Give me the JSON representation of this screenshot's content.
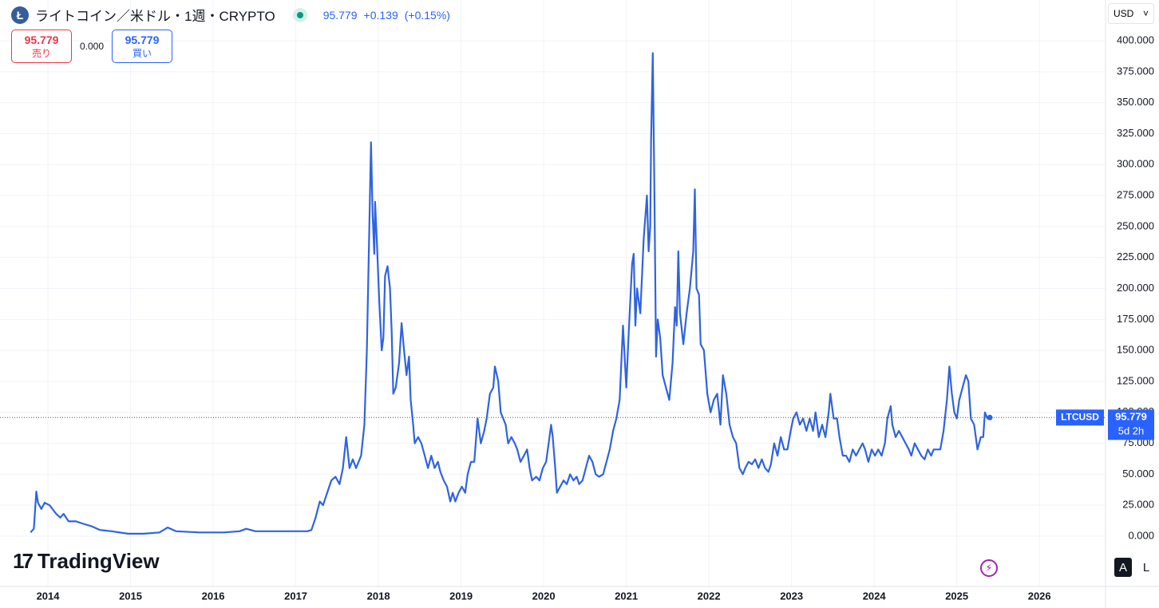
{
  "chart_data": {
    "type": "line",
    "x": [
      2013.79,
      2013.83,
      2013.86,
      2013.88,
      2013.92,
      2013.96,
      2014.02,
      2014.1,
      2014.15,
      2014.19,
      2014.25,
      2014.34,
      2014.43,
      2014.53,
      2014.63,
      2014.77,
      2014.97,
      2015.16,
      2015.35,
      2015.45,
      2015.55,
      2015.84,
      2016.13,
      2016.32,
      2016.4,
      2016.51,
      2016.8,
      2017.14,
      2017.19,
      2017.24,
      2017.29,
      2017.33,
      2017.38,
      2017.43,
      2017.48,
      2017.53,
      2017.57,
      2017.61,
      2017.65,
      2017.69,
      2017.73,
      2017.79,
      2017.83,
      2017.86,
      2017.89,
      2017.91,
      2017.93,
      2017.95,
      2017.96,
      2017.98,
      2018.01,
      2018.04,
      2018.06,
      2018.08,
      2018.11,
      2018.14,
      2018.16,
      2018.18,
      2018.21,
      2018.25,
      2018.28,
      2018.31,
      2018.34,
      2018.37,
      2018.39,
      2018.42,
      2018.44,
      2018.48,
      2018.52,
      2018.56,
      2018.6,
      2018.64,
      2018.68,
      2018.72,
      2018.75,
      2018.79,
      2018.83,
      2018.87,
      2018.9,
      2018.93,
      2018.97,
      2019.01,
      2019.05,
      2019.08,
      2019.12,
      2019.16,
      2019.2,
      2019.24,
      2019.28,
      2019.31,
      2019.35,
      2019.39,
      2019.41,
      2019.45,
      2019.48,
      2019.51,
      2019.54,
      2019.57,
      2019.61,
      2019.65,
      2019.68,
      2019.72,
      2019.76,
      2019.8,
      2019.83,
      2019.86,
      2019.91,
      2019.95,
      2019.99,
      2020.03,
      2020.07,
      2020.09,
      2020.11,
      2020.14,
      2020.16,
      2020.2,
      2020.24,
      2020.28,
      2020.32,
      2020.36,
      2020.4,
      2020.43,
      2020.47,
      2020.51,
      2020.55,
      2020.59,
      2020.63,
      2020.67,
      2020.72,
      2020.76,
      2020.8,
      2020.84,
      2020.88,
      2020.92,
      2020.96,
      2021.0,
      2021.03,
      2021.07,
      2021.09,
      2021.11,
      2021.13,
      2021.17,
      2021.21,
      2021.25,
      2021.27,
      2021.29,
      2021.3,
      2021.32,
      2021.34,
      2021.36,
      2021.38,
      2021.41,
      2021.44,
      2021.48,
      2021.52,
      2021.56,
      2021.59,
      2021.61,
      2021.63,
      2021.65,
      2021.69,
      2021.73,
      2021.77,
      2021.81,
      2021.83,
      2021.85,
      2021.88,
      2021.9,
      2021.94,
      2021.98,
      2022.02,
      2022.06,
      2022.1,
      2022.14,
      2022.17,
      2022.21,
      2022.25,
      2022.29,
      2022.33,
      2022.37,
      2022.41,
      2022.44,
      2022.48,
      2022.52,
      2022.56,
      2022.6,
      2022.64,
      2022.68,
      2022.72,
      2022.75,
      2022.79,
      2022.83,
      2022.87,
      2022.91,
      2022.95,
      2022.99,
      2023.02,
      2023.06,
      2023.1,
      2023.14,
      2023.18,
      2023.22,
      2023.26,
      2023.29,
      2023.33,
      2023.37,
      2023.41,
      2023.45,
      2023.47,
      2023.51,
      2023.55,
      2023.58,
      2023.62,
      2023.66,
      2023.7,
      2023.74,
      2023.78,
      2023.82,
      2023.86,
      2023.89,
      2023.93,
      2023.97,
      2024.01,
      2024.05,
      2024.09,
      2024.13,
      2024.16,
      2024.2,
      2024.22,
      2024.26,
      2024.3,
      2024.34,
      2024.38,
      2024.42,
      2024.45,
      2024.49,
      2024.53,
      2024.57,
      2024.61,
      2024.65,
      2024.69,
      2024.72,
      2024.76,
      2024.8,
      2024.84,
      2024.88,
      2024.91,
      2024.94,
      2024.97,
      2025.0,
      2025.03,
      2025.07,
      2025.11,
      2025.14,
      2025.17,
      2025.21,
      2025.25,
      2025.29,
      2025.32,
      2025.34,
      2025.37,
      2025.4
    ],
    "series": [
      {
        "name": "LTCUSD",
        "color": "#2f63e0",
        "values": [
          3,
          6,
          36,
          27,
          22,
          27,
          25,
          18,
          15,
          18,
          12,
          12,
          10,
          8,
          5,
          4,
          2,
          2,
          3,
          7,
          4,
          3,
          3,
          4,
          6,
          4,
          4,
          4,
          5,
          15,
          28,
          25,
          35,
          45,
          48,
          42,
          55,
          80,
          55,
          62,
          55,
          65,
          90,
          150,
          250,
          318,
          260,
          228,
          270,
          240,
          190,
          150,
          160,
          210,
          218,
          200,
          165,
          115,
          120,
          140,
          172,
          150,
          130,
          145,
          110,
          90,
          75,
          80,
          75,
          65,
          55,
          65,
          55,
          60,
          52,
          45,
          40,
          28,
          35,
          28,
          35,
          40,
          35,
          50,
          60,
          60,
          95,
          75,
          85,
          95,
          115,
          120,
          137,
          125,
          100,
          95,
          90,
          75,
          80,
          75,
          70,
          60,
          65,
          70,
          55,
          45,
          48,
          45,
          55,
          60,
          80,
          90,
          80,
          55,
          35,
          40,
          45,
          42,
          50,
          45,
          48,
          42,
          45,
          55,
          65,
          60,
          50,
          48,
          50,
          60,
          70,
          85,
          95,
          110,
          170,
          120,
          165,
          220,
          228,
          170,
          200,
          180,
          240,
          275,
          230,
          250,
          320,
          390,
          280,
          145,
          175,
          160,
          130,
          120,
          110,
          140,
          185,
          170,
          230,
          180,
          155,
          180,
          200,
          230,
          280,
          200,
          195,
          155,
          150,
          115,
          100,
          110,
          115,
          90,
          130,
          115,
          90,
          80,
          75,
          55,
          50,
          55,
          60,
          58,
          62,
          55,
          62,
          55,
          52,
          58,
          75,
          65,
          80,
          70,
          70,
          85,
          95,
          100,
          90,
          95,
          85,
          95,
          85,
          100,
          80,
          90,
          80,
          100,
          115,
          95,
          95,
          80,
          65,
          65,
          60,
          70,
          65,
          70,
          75,
          70,
          60,
          70,
          65,
          70,
          65,
          75,
          95,
          105,
          90,
          80,
          85,
          80,
          75,
          70,
          65,
          75,
          70,
          65,
          62,
          70,
          65,
          70,
          70,
          70,
          85,
          110,
          137,
          115,
          100,
          95,
          110,
          120,
          130,
          125,
          95,
          90,
          70,
          80,
          80,
          100,
          95,
          95.779
        ]
      }
    ],
    "xlim": [
      2013.42,
      2026.8
    ],
    "xticks": [
      2014,
      2015,
      2016,
      2017,
      2018,
      2019,
      2020,
      2021,
      2022,
      2023,
      2024,
      2025,
      2026
    ],
    "ylim": [
      -40.6,
      432.9
    ],
    "yticks": [
      {
        "value": 0,
        "label": "0.000"
      },
      {
        "value": 25,
        "label": "25.000"
      },
      {
        "value": 50,
        "label": "50.000"
      },
      {
        "value": 75,
        "label": "75.000"
      },
      {
        "value": 100,
        "label": "100.000"
      },
      {
        "value": 125,
        "label": "125.000"
      },
      {
        "value": 150,
        "label": "150.000"
      },
      {
        "value": 175,
        "label": "175.000"
      },
      {
        "value": 200,
        "label": "200.000"
      },
      {
        "value": 225,
        "label": "225.000"
      },
      {
        "value": 250,
        "label": "250.000"
      },
      {
        "value": 275,
        "label": "275.000"
      },
      {
        "value": 300,
        "label": "300.000"
      },
      {
        "value": 325,
        "label": "325.000"
      },
      {
        "value": 350,
        "label": "350.000"
      },
      {
        "value": 375,
        "label": "375.000"
      },
      {
        "value": 400,
        "label": "400.000"
      }
    ],
    "grid": true
  },
  "header": {
    "logo": "Ł",
    "title": "ライトコイン／米ドル・1週・CRYPTO",
    "price": "95.779",
    "change": "+0.139",
    "change_pct": "(+0.15%)"
  },
  "trade": {
    "sell_price": "95.779",
    "sell_label": "売り",
    "spread": "0.000",
    "buy_price": "95.779",
    "buy_label": "買い"
  },
  "currency": "USD",
  "last_price": {
    "label": "95.779",
    "countdown": "5d 2h"
  },
  "brand": "TradingView",
  "scale_buttons": [
    "A",
    "L"
  ]
}
